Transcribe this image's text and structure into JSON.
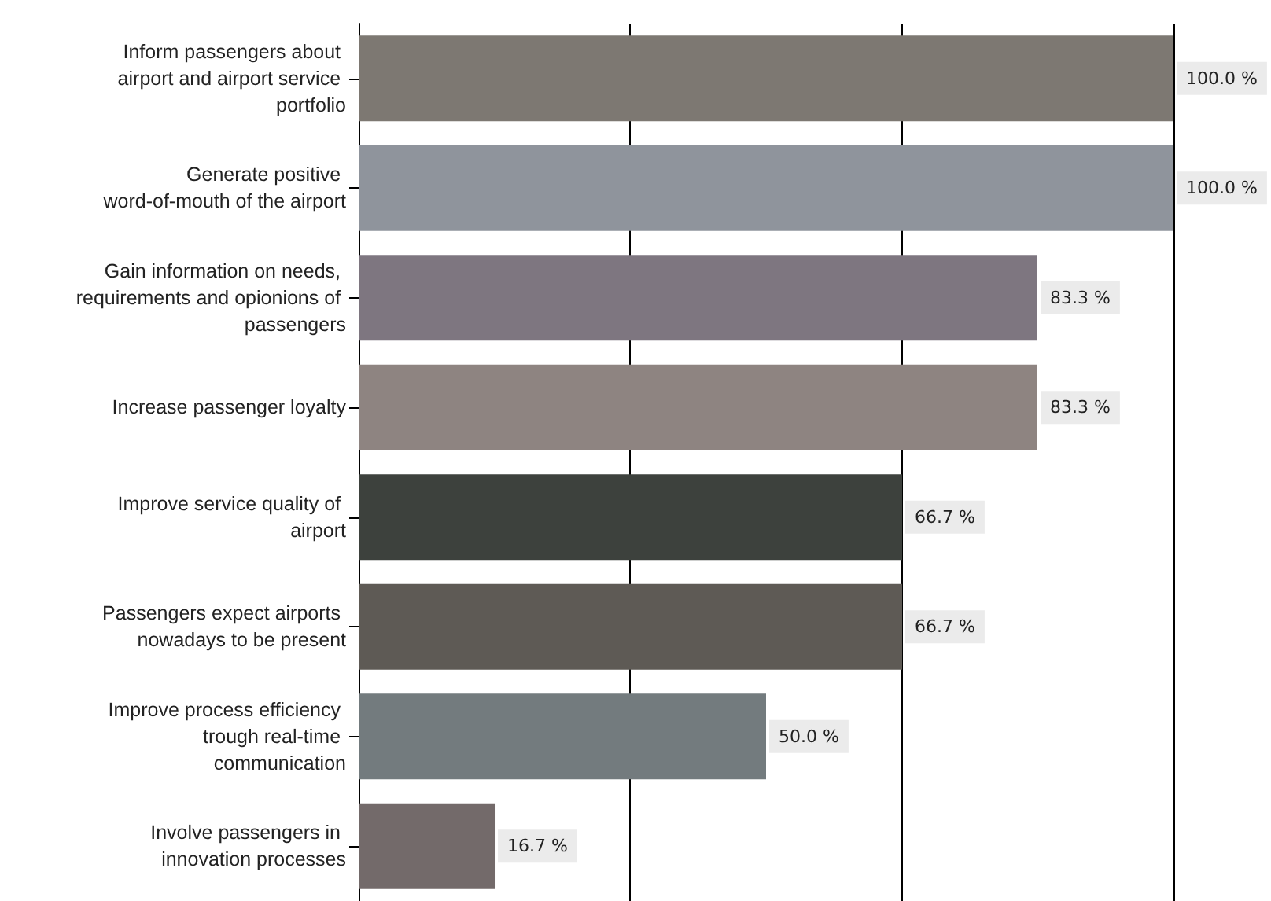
{
  "chart_data": {
    "type": "bar",
    "orientation": "horizontal",
    "categories": [
      "Inform passengers about airport and airport service portfolio",
      "Generate positive word-of-mouth of the airport",
      "Gain information on needs, requirements and opionions of passengers",
      "Increase passenger loyalty",
      "Improve service quality of airport",
      "Passengers expect airports nowadays to be present",
      "Improve process efficiency trough real-time communication",
      "Involve passengers in innovation processes"
    ],
    "values": [
      100.0,
      100.0,
      83.3,
      83.3,
      66.7,
      66.7,
      50.0,
      16.7
    ],
    "colors": [
      "#7d7872",
      "#8f949c",
      "#7e7680",
      "#8e8481",
      "#3d413d",
      "#5e5a55",
      "#737b7e",
      "#736a6a"
    ],
    "value_labels": [
      "100.0 %",
      "100.0 %",
      "83.3 %",
      "83.3 %",
      "66.7 %",
      "66.7 %",
      "50.0 %",
      "16.7 %"
    ],
    "xlim": [
      0,
      100
    ],
    "xticks": [
      {
        "value": 0,
        "label": null
      },
      {
        "value": 33.3,
        "label": null
      },
      {
        "value": 66.7,
        "label": null
      },
      {
        "value": 100,
        "label": null
      }
    ],
    "grid": "x",
    "tick_labels": "y"
  }
}
